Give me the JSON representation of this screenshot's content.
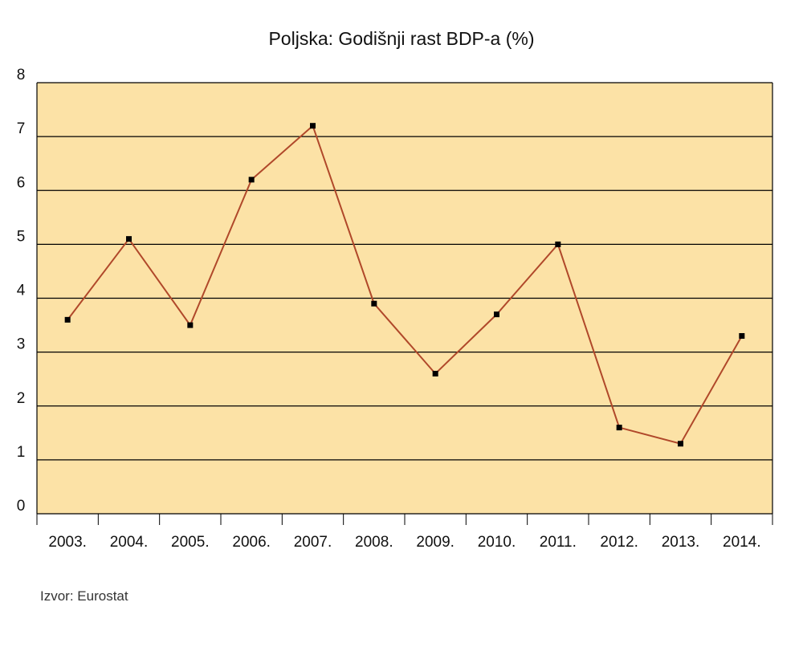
{
  "chart_data": {
    "type": "line",
    "title": "Poljska: Godišnji rast BDP-a (%)",
    "xlabel": "",
    "ylabel": "",
    "categories": [
      "2003.",
      "2004.",
      "2005.",
      "2006.",
      "2007.",
      "2008.",
      "2009.",
      "2010.",
      "2011.",
      "2012.",
      "2013.",
      "2014."
    ],
    "series": [
      {
        "values": [
          3.6,
          5.1,
          3.5,
          6.2,
          7.2,
          3.9,
          2.6,
          3.7,
          5.0,
          1.6,
          1.3,
          3.3
        ]
      }
    ],
    "ylim": [
      0,
      8
    ],
    "yticks": [
      "0",
      "1",
      "2",
      "3",
      "4",
      "5",
      "6",
      "7",
      "8"
    ],
    "grid": true,
    "legend": "none",
    "colors": {
      "plot_background": "#fce2a6",
      "line": "#b0482a",
      "marker": "#000000",
      "grid": "#000000"
    }
  },
  "source_note": "Izvor: Eurostat"
}
